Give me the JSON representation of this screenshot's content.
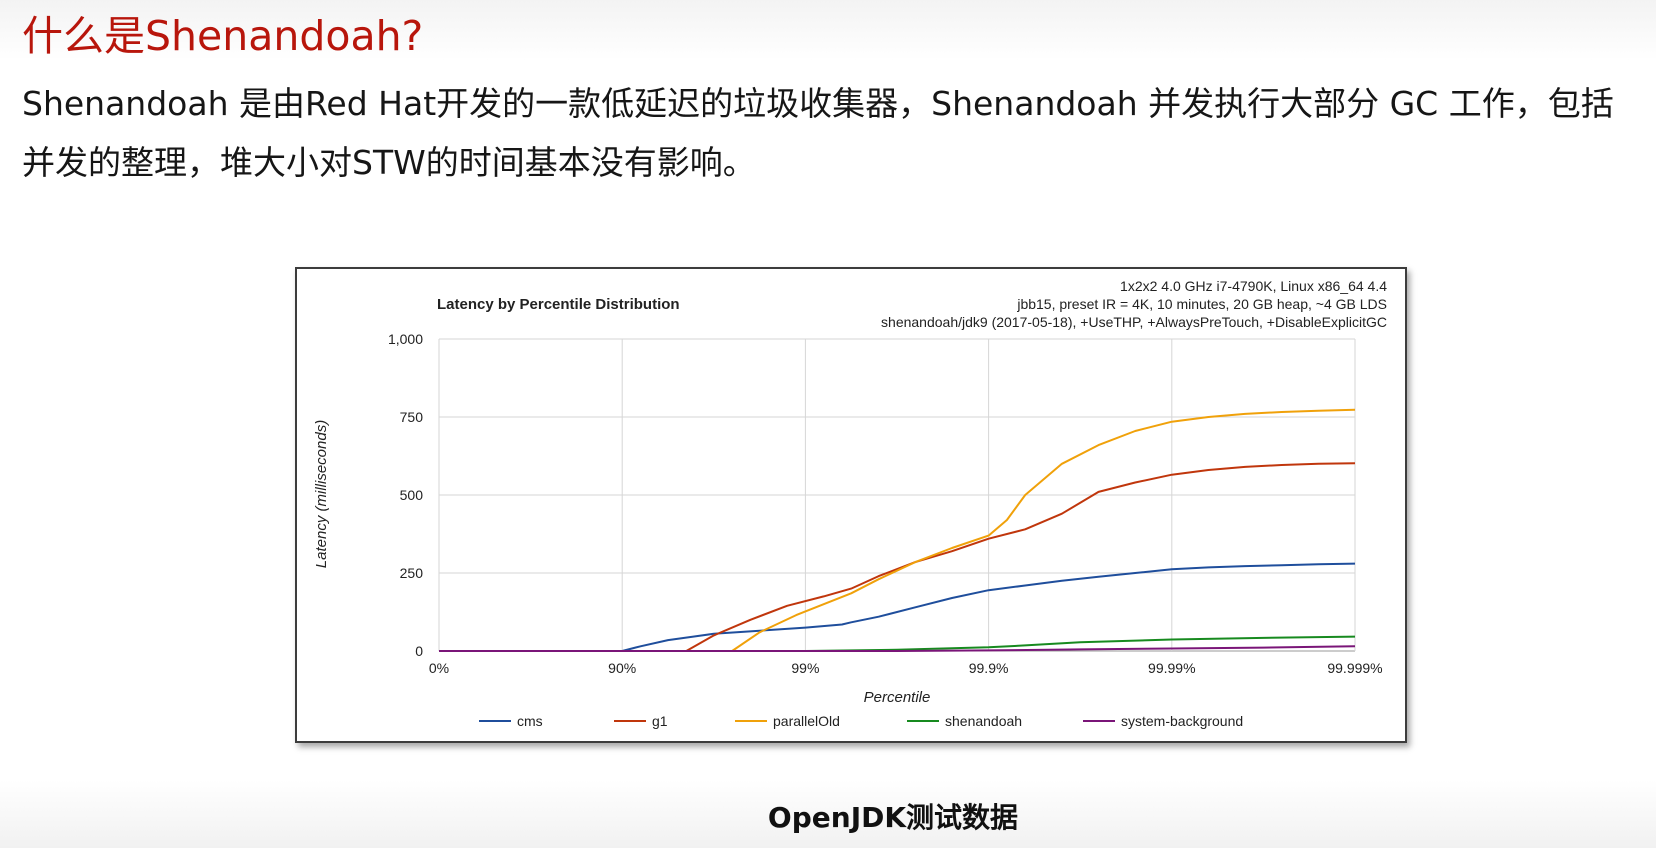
{
  "slide": {
    "title": "什么是Shenandoah?",
    "body": "Shenandoah 是由Red Hat开发的一款低延迟的垃圾收集器，Shenandoah 并发执行大部分 GC 工作，包括并发的整理，堆大小对STW的时间基本没有影响。",
    "caption": "OpenJDK测试数据"
  },
  "chart_data": {
    "type": "line",
    "title": "Latency by Percentile Distribution",
    "subtitle_lines": [
      "1x2x2 4.0 GHz i7-4790K, Linux x86_64 4.4",
      "jbb15, preset IR = 4K, 10 minutes, 20 GB heap, ~4 GB LDS",
      "shenandoah/jdk9 (2017-05-18), +UseTHP, +AlwaysPreTouch, +DisableExplicitGC"
    ],
    "xlabel": "Percentile",
    "ylabel": "Latency (milliseconds)",
    "x_scale": "log10(1/(1-p))",
    "x_ticks": [
      "0%",
      "90%",
      "99%",
      "99.9%",
      "99.99%",
      "99.999%"
    ],
    "x_tick_values": [
      0,
      1,
      2,
      3,
      4,
      5
    ],
    "y_ticks": [
      "0",
      "250",
      "500",
      "750",
      "1,000"
    ],
    "y_tick_values": [
      0,
      250,
      500,
      750,
      1000
    ],
    "ylim": [
      0,
      1000
    ],
    "xlim": [
      0,
      5
    ],
    "grid": true,
    "legend_position": "bottom",
    "series": [
      {
        "name": "cms",
        "color": "#1f4e9c",
        "points": [
          [
            0,
            0
          ],
          [
            1,
            0
          ],
          [
            1.1,
            15
          ],
          [
            1.25,
            35
          ],
          [
            1.5,
            55
          ],
          [
            1.75,
            65
          ],
          [
            2,
            75
          ],
          [
            2.2,
            85
          ],
          [
            2.25,
            92
          ],
          [
            2.4,
            110
          ],
          [
            2.6,
            140
          ],
          [
            2.8,
            170
          ],
          [
            3,
            195
          ],
          [
            3.2,
            210
          ],
          [
            3.4,
            225
          ],
          [
            3.6,
            238
          ],
          [
            3.8,
            250
          ],
          [
            4,
            262
          ],
          [
            4.2,
            268
          ],
          [
            4.4,
            272
          ],
          [
            4.6,
            275
          ],
          [
            4.8,
            278
          ],
          [
            5,
            280
          ]
        ]
      },
      {
        "name": "g1",
        "color": "#c0360c",
        "points": [
          [
            0,
            0
          ],
          [
            1.2,
            0
          ],
          [
            1.35,
            0
          ],
          [
            1.5,
            50
          ],
          [
            1.7,
            100
          ],
          [
            1.9,
            145
          ],
          [
            2.1,
            175
          ],
          [
            2.25,
            200
          ],
          [
            2.4,
            240
          ],
          [
            2.6,
            285
          ],
          [
            2.8,
            320
          ],
          [
            3,
            360
          ],
          [
            3.2,
            390
          ],
          [
            3.4,
            440
          ],
          [
            3.6,
            510
          ],
          [
            3.8,
            540
          ],
          [
            4,
            565
          ],
          [
            4.2,
            580
          ],
          [
            4.4,
            590
          ],
          [
            4.6,
            596
          ],
          [
            4.8,
            600
          ],
          [
            5,
            602
          ]
        ]
      },
      {
        "name": "parallelOld",
        "color": "#f0a10a",
        "points": [
          [
            0,
            0
          ],
          [
            1.5,
            0
          ],
          [
            1.6,
            0
          ],
          [
            1.75,
            60
          ],
          [
            1.95,
            115
          ],
          [
            2.1,
            150
          ],
          [
            2.25,
            185
          ],
          [
            2.4,
            230
          ],
          [
            2.6,
            285
          ],
          [
            2.8,
            330
          ],
          [
            3,
            370
          ],
          [
            3.1,
            420
          ],
          [
            3.2,
            500
          ],
          [
            3.4,
            600
          ],
          [
            3.6,
            660
          ],
          [
            3.8,
            705
          ],
          [
            4,
            735
          ],
          [
            4.2,
            750
          ],
          [
            4.4,
            760
          ],
          [
            4.6,
            766
          ],
          [
            4.8,
            770
          ],
          [
            5,
            773
          ]
        ]
      },
      {
        "name": "shenandoah",
        "color": "#178a1f",
        "points": [
          [
            0,
            0
          ],
          [
            2,
            0
          ],
          [
            2.5,
            4
          ],
          [
            3,
            12
          ],
          [
            3.2,
            18
          ],
          [
            3.5,
            28
          ],
          [
            4,
            37
          ],
          [
            4.5,
            42
          ],
          [
            5,
            46
          ]
        ]
      },
      {
        "name": "system-background",
        "color": "#7a1578",
        "points": [
          [
            0,
            0
          ],
          [
            2.5,
            0
          ],
          [
            3,
            2
          ],
          [
            3.5,
            5
          ],
          [
            4,
            8
          ],
          [
            4.5,
            11
          ],
          [
            5,
            15
          ]
        ]
      }
    ]
  }
}
